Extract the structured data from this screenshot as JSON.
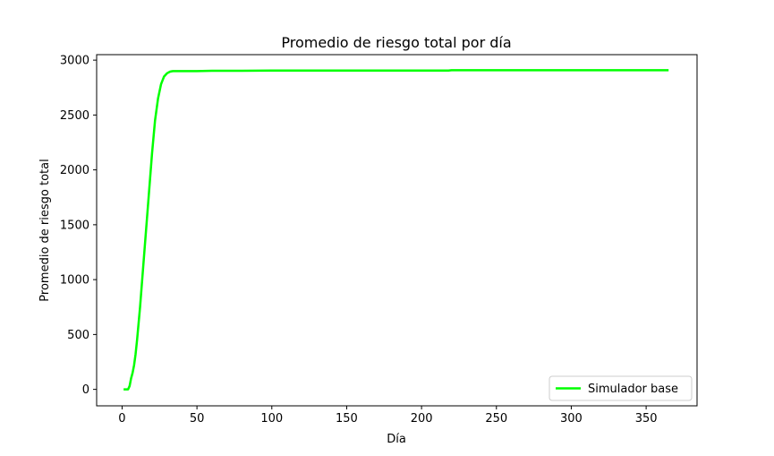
{
  "chart_data": {
    "type": "line",
    "title": "Promedio de riesgo total por día",
    "xlabel": "Día",
    "ylabel": "Promedio de riesgo total",
    "xlim": [
      -17,
      384
    ],
    "ylim": [
      -150,
      3050
    ],
    "xticks": [
      0,
      50,
      100,
      150,
      200,
      250,
      300,
      350
    ],
    "yticks": [
      0,
      500,
      1000,
      1500,
      2000,
      2500,
      3000
    ],
    "grid": false,
    "legend_position": "lower-right",
    "series": [
      {
        "name": "Simulador base",
        "color": "#00ff00",
        "x": [
          1,
          2,
          3,
          4,
          5,
          6,
          7,
          8,
          9,
          10,
          12,
          14,
          16,
          18,
          20,
          22,
          24,
          26,
          28,
          30,
          32,
          33,
          34,
          35,
          36,
          40,
          50,
          60,
          80,
          100,
          150,
          200,
          218,
          220,
          250,
          300,
          350,
          365
        ],
        "y": [
          0,
          0,
          0,
          0,
          30,
          100,
          150,
          220,
          320,
          450,
          750,
          1100,
          1450,
          1800,
          2150,
          2450,
          2650,
          2780,
          2850,
          2880,
          2895,
          2898,
          2900,
          2900,
          2900,
          2900,
          2900,
          2903,
          2903,
          2905,
          2905,
          2905,
          2905,
          2908,
          2908,
          2908,
          2908,
          2908
        ]
      }
    ]
  }
}
